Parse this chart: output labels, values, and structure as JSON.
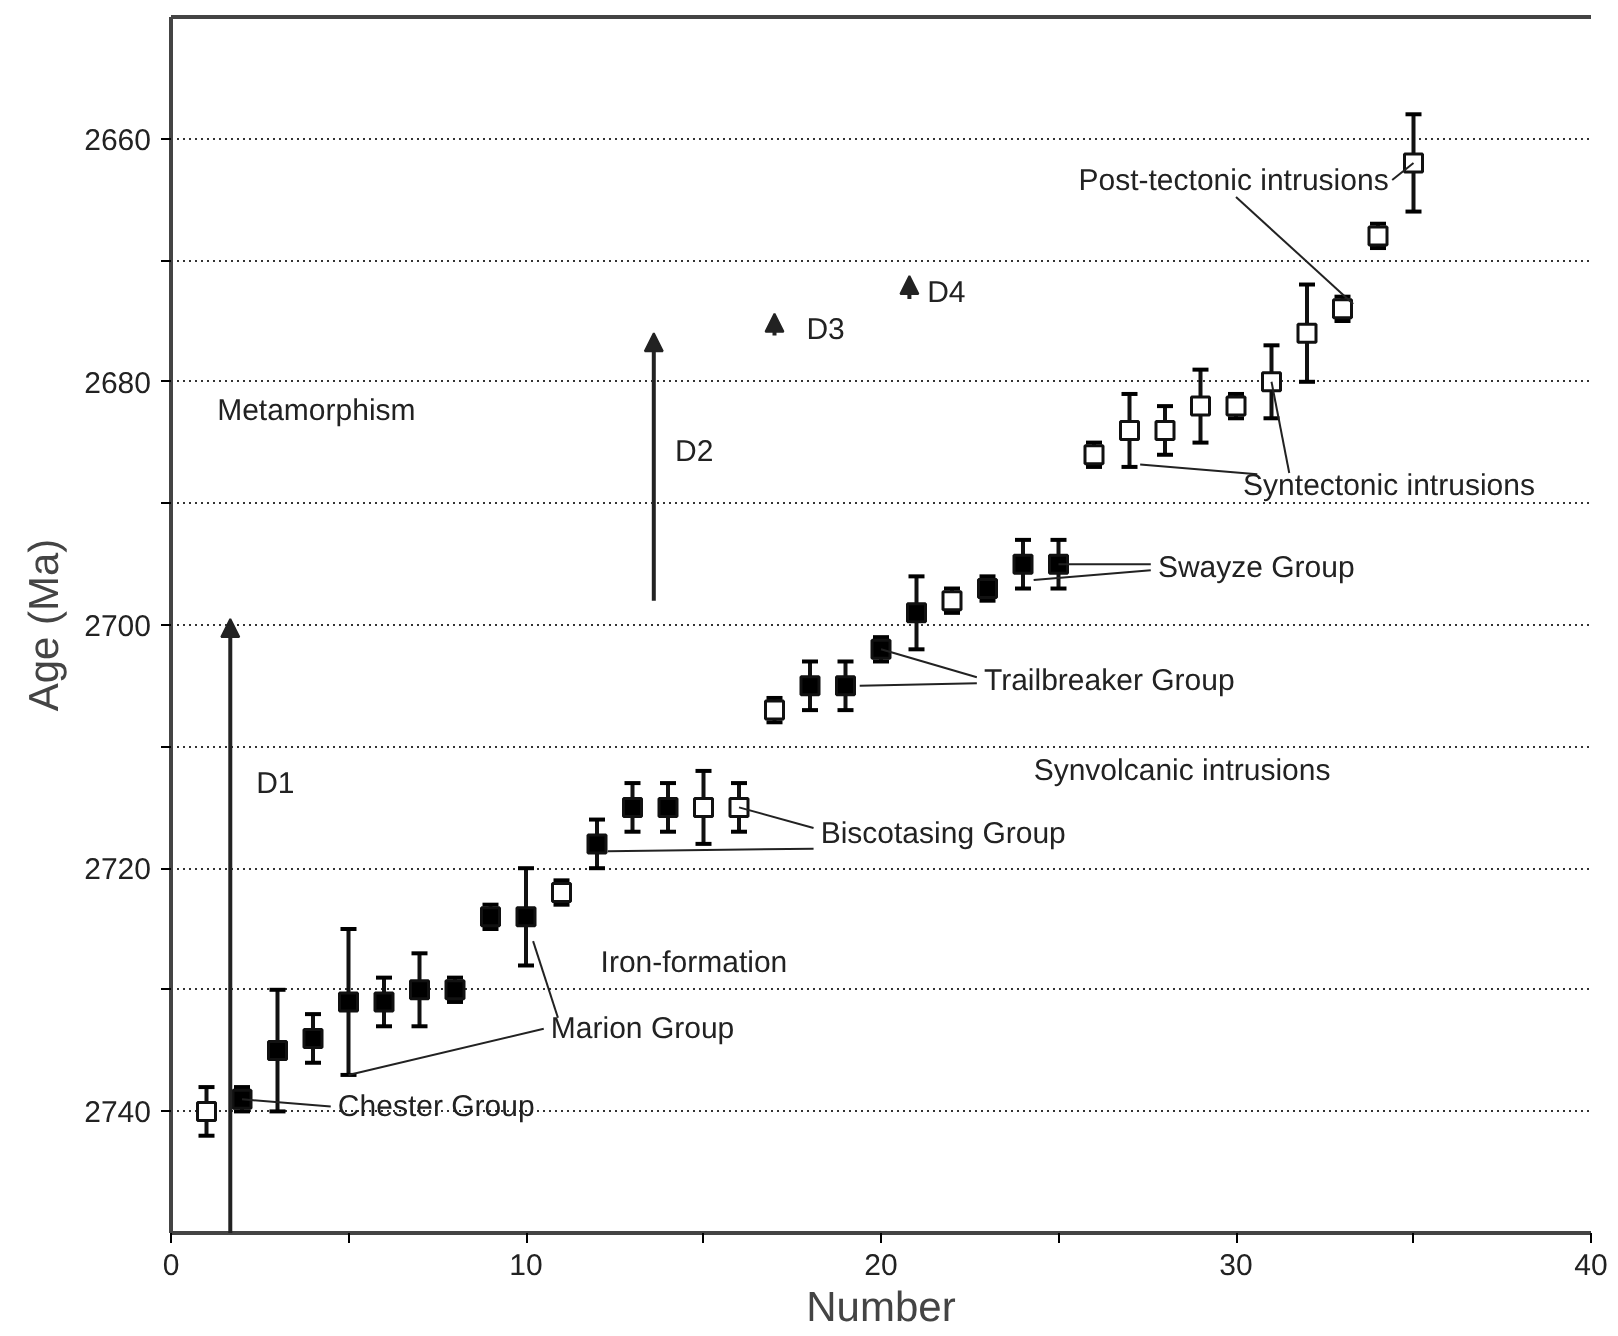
{
  "chart_data": {
    "type": "scatter",
    "xlabel": "Number",
    "ylabel": "Age (Ma)",
    "xlim": [
      0,
      40
    ],
    "ylim": [
      2750,
      2650
    ],
    "xticks": [
      0,
      {
        "value": 5,
        "label": null
      },
      10,
      {
        "value": 15,
        "label": null
      },
      20,
      {
        "value": 25,
        "label": null
      },
      30,
      {
        "value": 35,
        "label": null
      },
      40
    ],
    "yticks": [
      2660,
      {
        "value": 2670,
        "label": null
      },
      2680,
      {
        "value": 2690,
        "label": null
      },
      2700,
      {
        "value": 2710,
        "label": null
      },
      2720,
      {
        "value": 2730,
        "label": null
      },
      2740
    ],
    "grid": "y",
    "marker": "square",
    "series": [
      {
        "color": "#000000",
        "x": [
          2,
          3,
          4,
          5,
          6,
          7,
          8,
          9,
          10,
          12,
          13,
          14,
          18,
          19,
          20,
          21,
          23,
          24,
          25
        ],
        "values": [
          2739,
          2735,
          2734,
          2731,
          2731,
          2730,
          2730,
          2724,
          2724,
          2718,
          2715,
          2715,
          2705,
          2705,
          2702,
          2699,
          2697,
          2695,
          2695
        ],
        "errors": [
          1,
          5,
          2,
          6,
          2,
          3,
          1,
          1,
          4,
          2,
          2,
          2,
          2,
          2,
          1,
          3,
          1,
          2,
          2
        ]
      },
      {
        "color": "#ffffff",
        "x": [
          1,
          11,
          15,
          16,
          17,
          22,
          26,
          27,
          28,
          29,
          30,
          31,
          32,
          33,
          34,
          35
        ],
        "values": [
          2740,
          2722,
          2715,
          2715,
          2707,
          2698,
          2686,
          2684,
          2684,
          2682,
          2682,
          2680,
          2676,
          2674,
          2668,
          2662
        ],
        "errors": [
          2,
          1,
          3,
          2,
          1,
          1,
          1,
          3,
          2,
          3,
          1,
          3,
          4,
          1,
          1,
          4
        ]
      }
    ],
    "annotations": [
      {
        "text": "Chester Group",
        "x": 2,
        "y": 2739
      },
      {
        "text": "Marion Group",
        "x": 5,
        "y": 2737
      },
      "Iron-formation",
      {
        "text": "Biscotasing Group",
        "x": 16,
        "y": 2715
      },
      "Synvolcanic intrusions",
      {
        "text": "Trailbreaker Group",
        "x": 20,
        "y": 2702
      },
      {
        "text": "Swayze Group",
        "x": 25,
        "y": 2695
      },
      {
        "text": "Syntectonic intrusions",
        "x": 31,
        "y": 2680
      },
      {
        "text": "Post-tectonic intrusions",
        "x": 35,
        "y": 2662
      },
      "Metamorphism",
      "D1",
      "D2",
      "D3",
      "D4"
    ]
  }
}
